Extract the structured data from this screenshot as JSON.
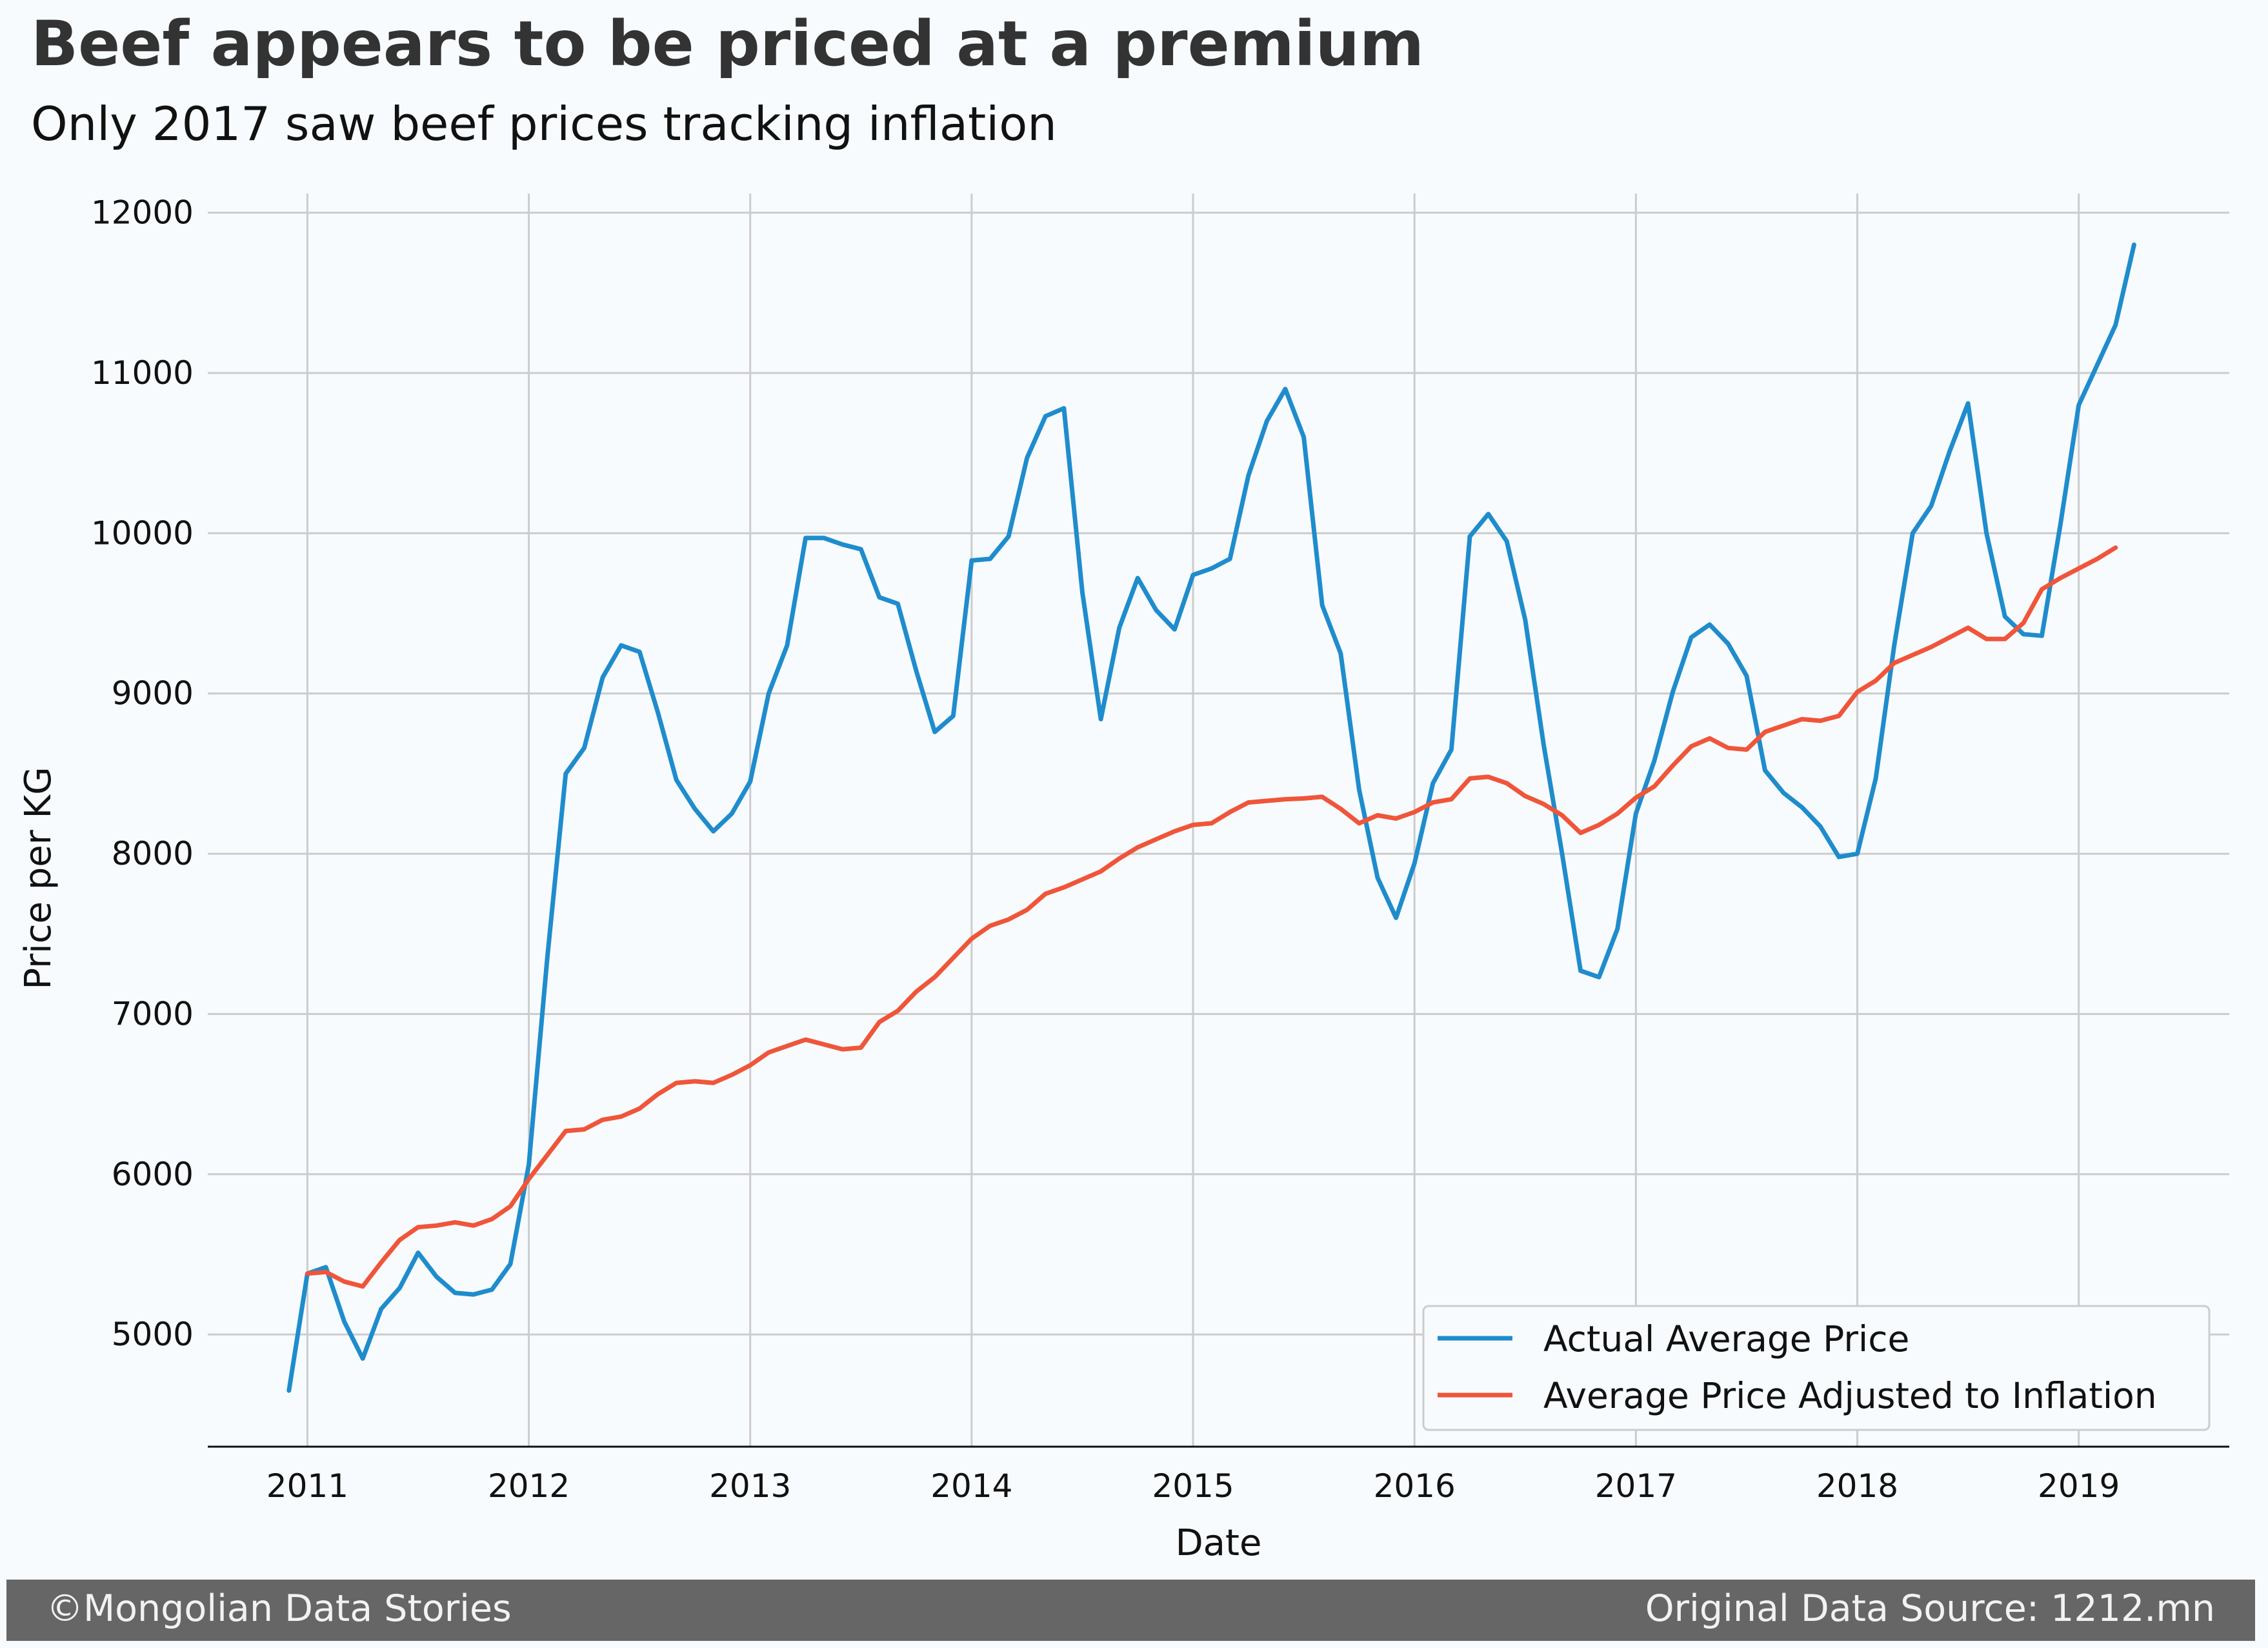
{
  "title": "Beef appears to be priced at a premium",
  "subtitle": "Only 2017 saw beef prices tracking inflation",
  "footer": {
    "left": "©Mongolian Data Stories",
    "right": "Original Data Source: 1212.mn"
  },
  "colors": {
    "background": "#f7fbfe",
    "grid": "#cccccc",
    "actual": "#1f8ccc",
    "adjusted": "#f0553a",
    "footer_bg": "#666666"
  },
  "chart_data": {
    "type": "line",
    "title": "Beef appears to be priced at a premium",
    "subtitle": "Only 2017 saw beef prices tracking inflation",
    "xlabel": "Date",
    "ylabel": "Price per KG",
    "xlim": [
      2010.55,
      2019.68
    ],
    "ylim": [
      4300,
      12200
    ],
    "xticks": [
      2011,
      2012,
      2013,
      2014,
      2015,
      2016,
      2017,
      2018,
      2019
    ],
    "xtick_labels": [
      "2011",
      "2012",
      "2013",
      "2014",
      "2015",
      "2016",
      "2017",
      "2018",
      "2019"
    ],
    "yticks": [
      5000,
      6000,
      7000,
      8000,
      9000,
      10000,
      11000,
      12000
    ],
    "ytick_labels": [
      "5000",
      "6000",
      "7000",
      "8000",
      "9000",
      "10000",
      "11000",
      "12000"
    ],
    "grid": true,
    "legend_position": "bottom-right",
    "series": [
      {
        "name": "Actual Average Price",
        "color": "#1f8ccc",
        "x": [
          "2010-12",
          "2011-01",
          "2011-02",
          "2011-03",
          "2011-04",
          "2011-05",
          "2011-06",
          "2011-07",
          "2011-08",
          "2011-09",
          "2011-10",
          "2011-11",
          "2011-12",
          "2012-01",
          "2012-02",
          "2012-03",
          "2012-04",
          "2012-05",
          "2012-06",
          "2012-07",
          "2012-08",
          "2012-09",
          "2012-10",
          "2012-11",
          "2012-12",
          "2013-01",
          "2013-02",
          "2013-03",
          "2013-04",
          "2013-05",
          "2013-06",
          "2013-07",
          "2013-08",
          "2013-09",
          "2013-10",
          "2013-11",
          "2013-12",
          "2014-01",
          "2014-02",
          "2014-03",
          "2014-04",
          "2014-05",
          "2014-06",
          "2014-07",
          "2014-08",
          "2014-09",
          "2014-10",
          "2014-11",
          "2014-12",
          "2015-01",
          "2015-02",
          "2015-03",
          "2015-04",
          "2015-05",
          "2015-06",
          "2015-07",
          "2015-08",
          "2015-09",
          "2015-10",
          "2015-11",
          "2015-12",
          "2016-01",
          "2016-02",
          "2016-03",
          "2016-04",
          "2016-05",
          "2016-06",
          "2016-07",
          "2016-08",
          "2016-09",
          "2016-10",
          "2016-11",
          "2016-12",
          "2017-01",
          "2017-02",
          "2017-03",
          "2017-04",
          "2017-05",
          "2017-06",
          "2017-07",
          "2017-08",
          "2017-09",
          "2017-10",
          "2017-11",
          "2017-12",
          "2018-01",
          "2018-02",
          "2018-03",
          "2018-04",
          "2018-05",
          "2018-06",
          "2018-07",
          "2018-08",
          "2018-09",
          "2018-10",
          "2018-11",
          "2018-12",
          "2019-01",
          "2019-02",
          "2019-03",
          "2019-04"
        ],
        "values": [
          4650,
          5380,
          5420,
          5080,
          4850,
          5160,
          5290,
          5510,
          5360,
          5260,
          5250,
          5280,
          5440,
          6060,
          7350,
          8500,
          8660,
          9100,
          9300,
          9260,
          8880,
          8460,
          8280,
          8140,
          8250,
          8450,
          9000,
          9300,
          9970,
          9970,
          9930,
          9900,
          9600,
          9560,
          9140,
          8760,
          8860,
          9830,
          9840,
          9980,
          10470,
          10730,
          10780,
          9630,
          8840,
          9410,
          9720,
          9520,
          9400,
          9740,
          9780,
          9840,
          10360,
          10700,
          10900,
          10600,
          9550,
          9250,
          8400,
          7850,
          7600,
          7940,
          8440,
          8650,
          9980,
          10120,
          9950,
          9460,
          8680,
          8000,
          7270,
          7230,
          7530,
          8250,
          8580,
          9010,
          9350,
          9430,
          9310,
          9110,
          8520,
          8380,
          8290,
          8170,
          7980,
          8000,
          8470,
          9300,
          10000,
          10170,
          10510,
          10810,
          10000,
          9480,
          9370,
          9360,
          10050,
          10800,
          11050,
          11300,
          11800
        ]
      },
      {
        "name": "Average Price Adjusted to Inflation",
        "color": "#f0553a",
        "x": [
          "2011-01",
          "2011-02",
          "2011-03",
          "2011-04",
          "2011-05",
          "2011-06",
          "2011-07",
          "2011-08",
          "2011-09",
          "2011-10",
          "2011-11",
          "2011-12",
          "2012-01",
          "2012-02",
          "2012-03",
          "2012-04",
          "2012-05",
          "2012-06",
          "2012-07",
          "2012-08",
          "2012-09",
          "2012-10",
          "2012-11",
          "2012-12",
          "2013-01",
          "2013-02",
          "2013-03",
          "2013-04",
          "2013-05",
          "2013-06",
          "2013-07",
          "2013-08",
          "2013-09",
          "2013-10",
          "2013-11",
          "2013-12",
          "2014-01",
          "2014-02",
          "2014-03",
          "2014-04",
          "2014-05",
          "2014-06",
          "2014-07",
          "2014-08",
          "2014-09",
          "2014-10",
          "2014-11",
          "2014-12",
          "2015-01",
          "2015-02",
          "2015-03",
          "2015-04",
          "2015-05",
          "2015-06",
          "2015-07",
          "2015-08",
          "2015-09",
          "2015-10",
          "2015-11",
          "2015-12",
          "2016-01",
          "2016-02",
          "2016-03",
          "2016-04",
          "2016-05",
          "2016-06",
          "2016-07",
          "2016-08",
          "2016-09",
          "2016-10",
          "2016-11",
          "2016-12",
          "2017-01",
          "2017-02",
          "2017-03",
          "2017-04",
          "2017-05",
          "2017-06",
          "2017-07",
          "2017-08",
          "2017-09",
          "2017-10",
          "2017-11",
          "2017-12",
          "2018-01",
          "2018-02",
          "2018-03",
          "2018-04",
          "2018-05",
          "2018-06",
          "2018-07",
          "2018-08",
          "2018-09",
          "2018-10",
          "2018-11",
          "2018-12",
          "2019-01",
          "2019-02",
          "2019-03"
        ],
        "values": [
          5380,
          5390,
          5330,
          5300,
          5450,
          5590,
          5670,
          5680,
          5700,
          5680,
          5720,
          5800,
          5970,
          6120,
          6270,
          6280,
          6340,
          6360,
          6410,
          6500,
          6570,
          6580,
          6570,
          6620,
          6680,
          6760,
          6800,
          6840,
          6810,
          6780,
          6790,
          6950,
          7020,
          7140,
          7230,
          7350,
          7470,
          7550,
          7590,
          7650,
          7750,
          7790,
          7840,
          7890,
          7970,
          8040,
          8090,
          8140,
          8180,
          8190,
          8260,
          8320,
          8330,
          8340,
          8345,
          8355,
          8280,
          8190,
          8240,
          8220,
          8260,
          8320,
          8340,
          8470,
          8480,
          8440,
          8360,
          8310,
          8240,
          8130,
          8180,
          8250,
          8350,
          8420,
          8550,
          8670,
          8720,
          8660,
          8650,
          8760,
          8800,
          8840,
          8830,
          8860,
          9010,
          9080,
          9190,
          9240,
          9290,
          9350,
          9410,
          9340,
          9340,
          9440,
          9650,
          9720,
          9780,
          9840,
          9910
        ]
      }
    ]
  }
}
